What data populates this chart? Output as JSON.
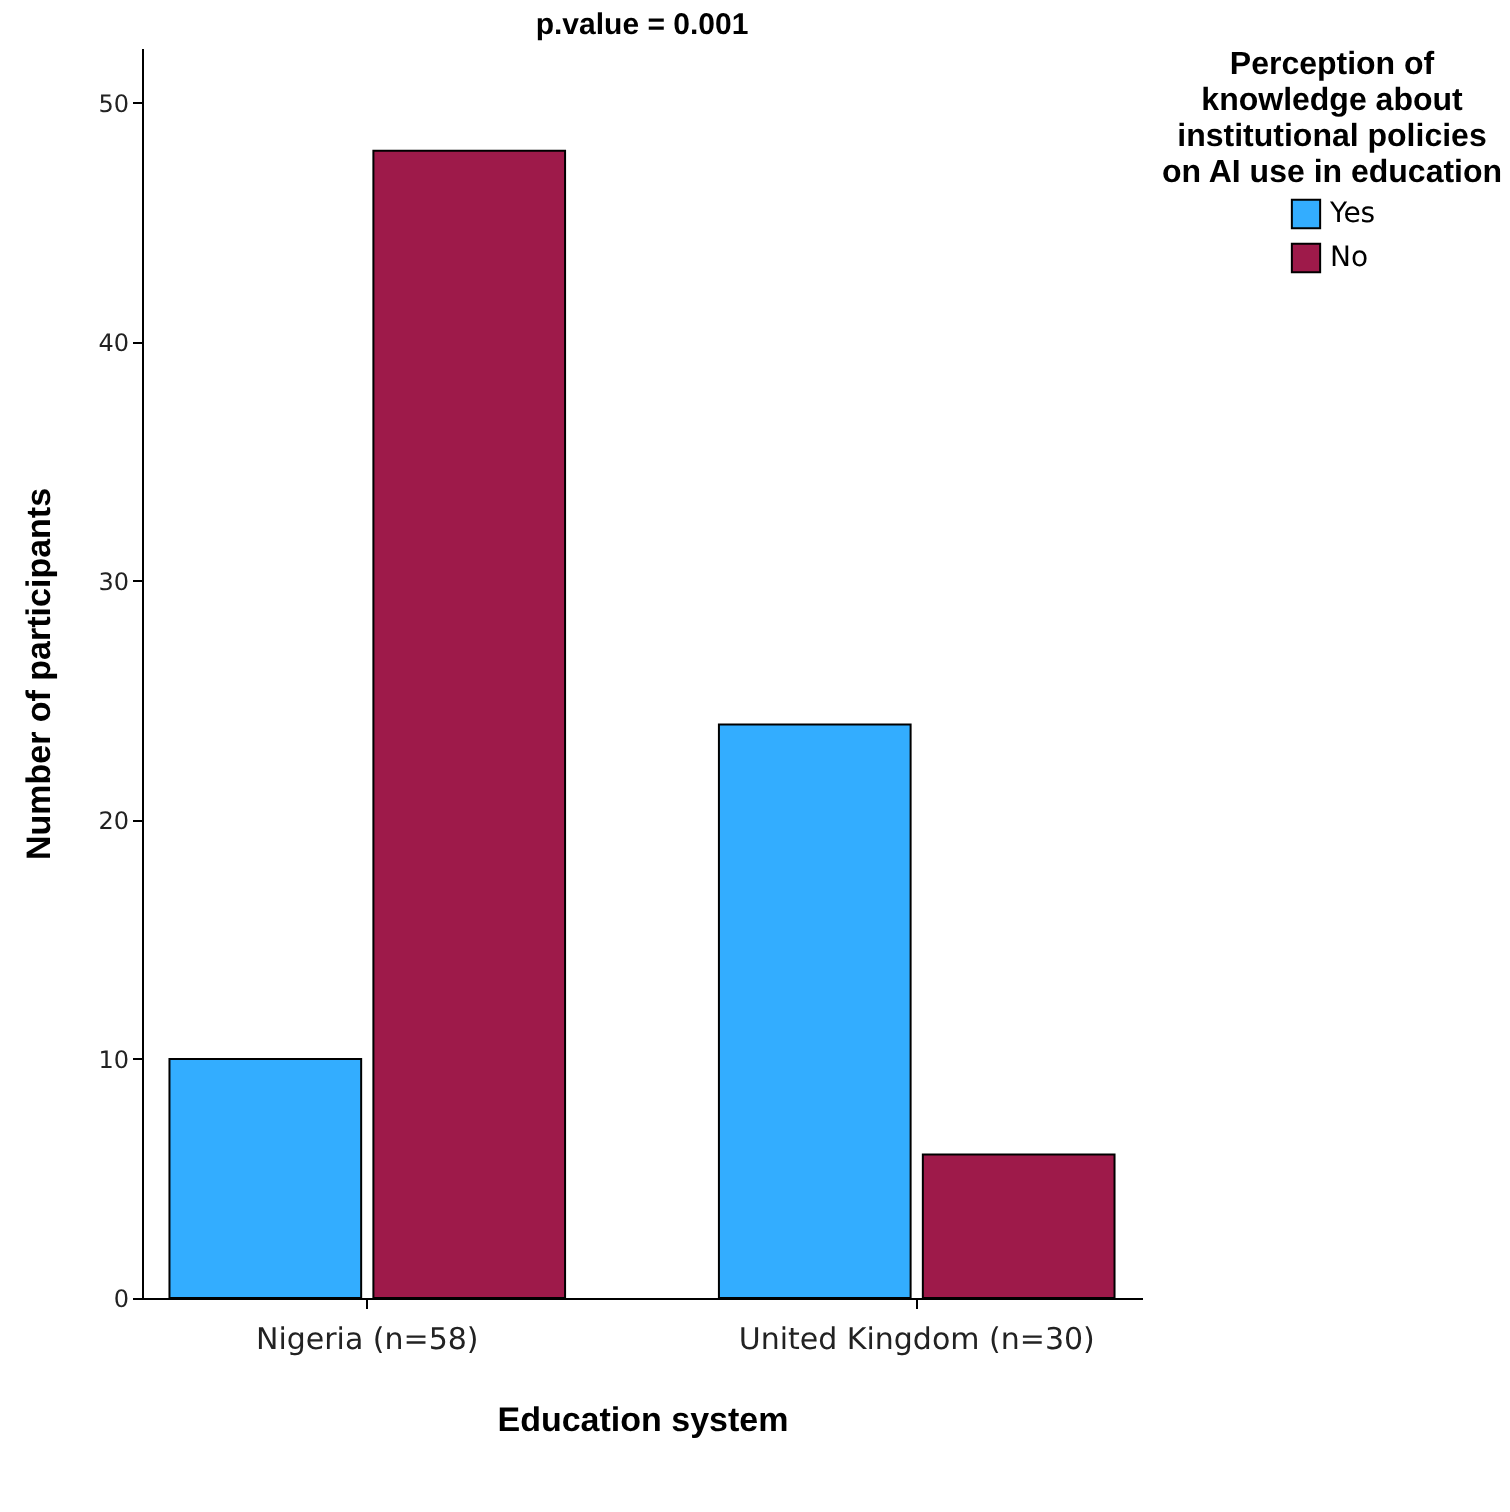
{
  "chart_data": {
    "type": "bar",
    "title": "p.value = 0.001",
    "xlabel": "Education system",
    "ylabel": "Number of participants",
    "legend_title": "Perception of knowledge about institutional policies on AI use in education",
    "categories": [
      "Nigeria (n=58)",
      "United Kingdom (n=30)"
    ],
    "series": [
      {
        "name": "Yes",
        "color": "#33adff",
        "values": [
          10,
          24
        ]
      },
      {
        "name": "No",
        "color": "#9e1a4a",
        "values": [
          48,
          6
        ]
      }
    ],
    "ylim": [
      0,
      52.3
    ],
    "yticks": [
      0,
      10,
      20,
      30,
      40,
      50
    ],
    "grid": false,
    "legend": "top right"
  }
}
